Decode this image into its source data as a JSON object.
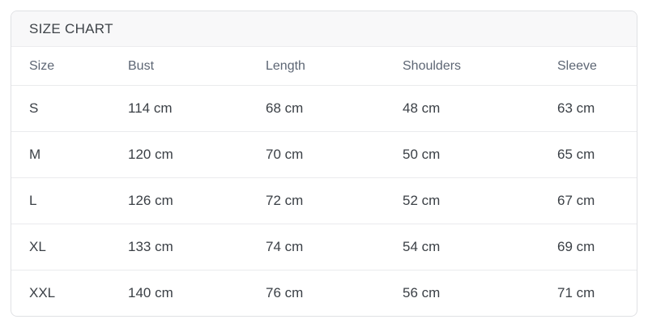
{
  "card": {
    "title": "SIZE CHART"
  },
  "table": {
    "columns": [
      "Size",
      "Bust",
      "Length",
      "Shoulders",
      "Sleeve"
    ],
    "rows": [
      [
        "S",
        "114 cm",
        "68 cm",
        "48 cm",
        "63 cm"
      ],
      [
        "M",
        "120 cm",
        "70 cm",
        "50 cm",
        "65 cm"
      ],
      [
        "L",
        "126 cm",
        "72 cm",
        "52 cm",
        "67 cm"
      ],
      [
        "XL",
        "133 cm",
        "74 cm",
        "54 cm",
        "69 cm"
      ],
      [
        "XXL",
        "140 cm",
        "76 cm",
        "56 cm",
        "71 cm"
      ]
    ],
    "unit": "cm"
  },
  "colors": {
    "card_border": "#e0e1e4",
    "title_bar_bg": "#f8f8f9",
    "title_text": "#3e4348",
    "header_text": "#5d6674",
    "data_text": "#3b4046",
    "row_divider": "#eaebed",
    "page_bg": "#ffffff"
  }
}
